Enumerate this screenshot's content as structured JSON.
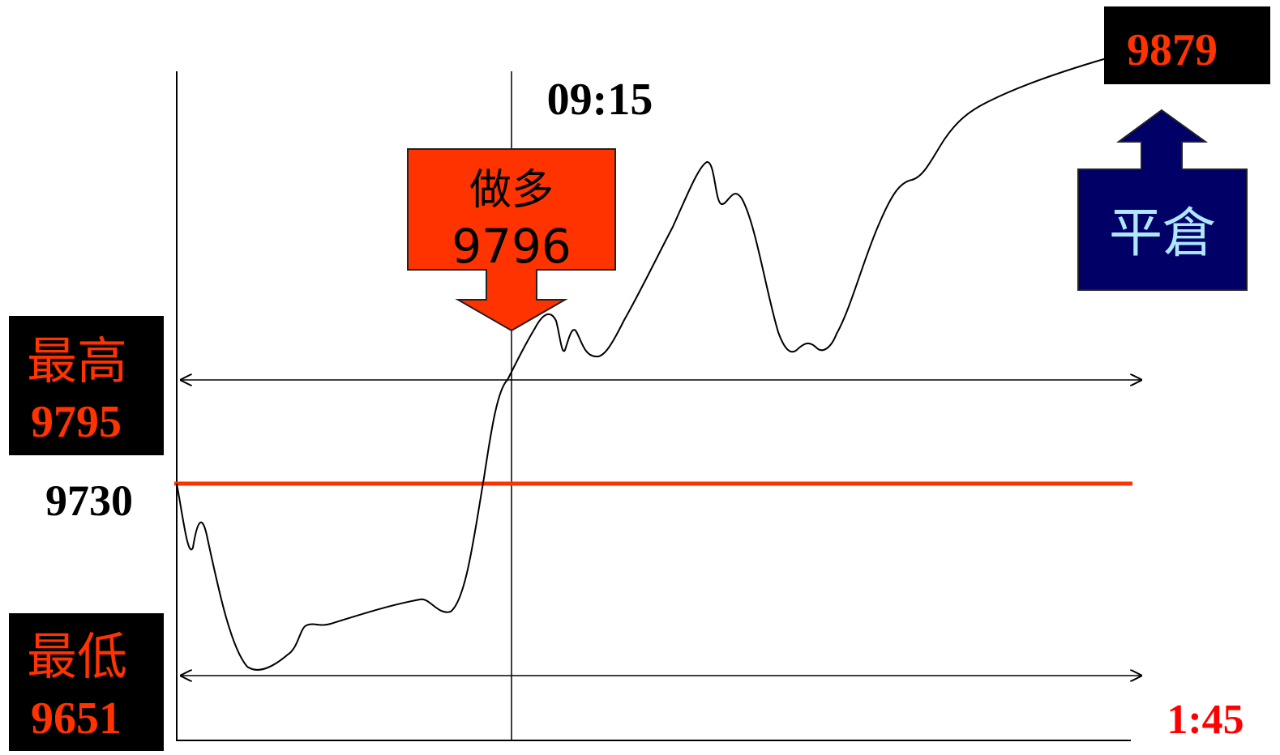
{
  "labels": {
    "time_entry": "09:15",
    "time_end": "1:45",
    "open_price": "9730",
    "high_title": "最高",
    "high_value": "9795",
    "low_title": "最低",
    "low_value": "9651",
    "long_title": "做多",
    "long_value": "9796",
    "close_title": "平倉",
    "close_value": "9879"
  },
  "colors": {
    "accent_red": "#ff3300",
    "orange_red": "#ff3300",
    "navy": "#000066",
    "black": "#000000",
    "close_text": "#aee7ff"
  }
}
